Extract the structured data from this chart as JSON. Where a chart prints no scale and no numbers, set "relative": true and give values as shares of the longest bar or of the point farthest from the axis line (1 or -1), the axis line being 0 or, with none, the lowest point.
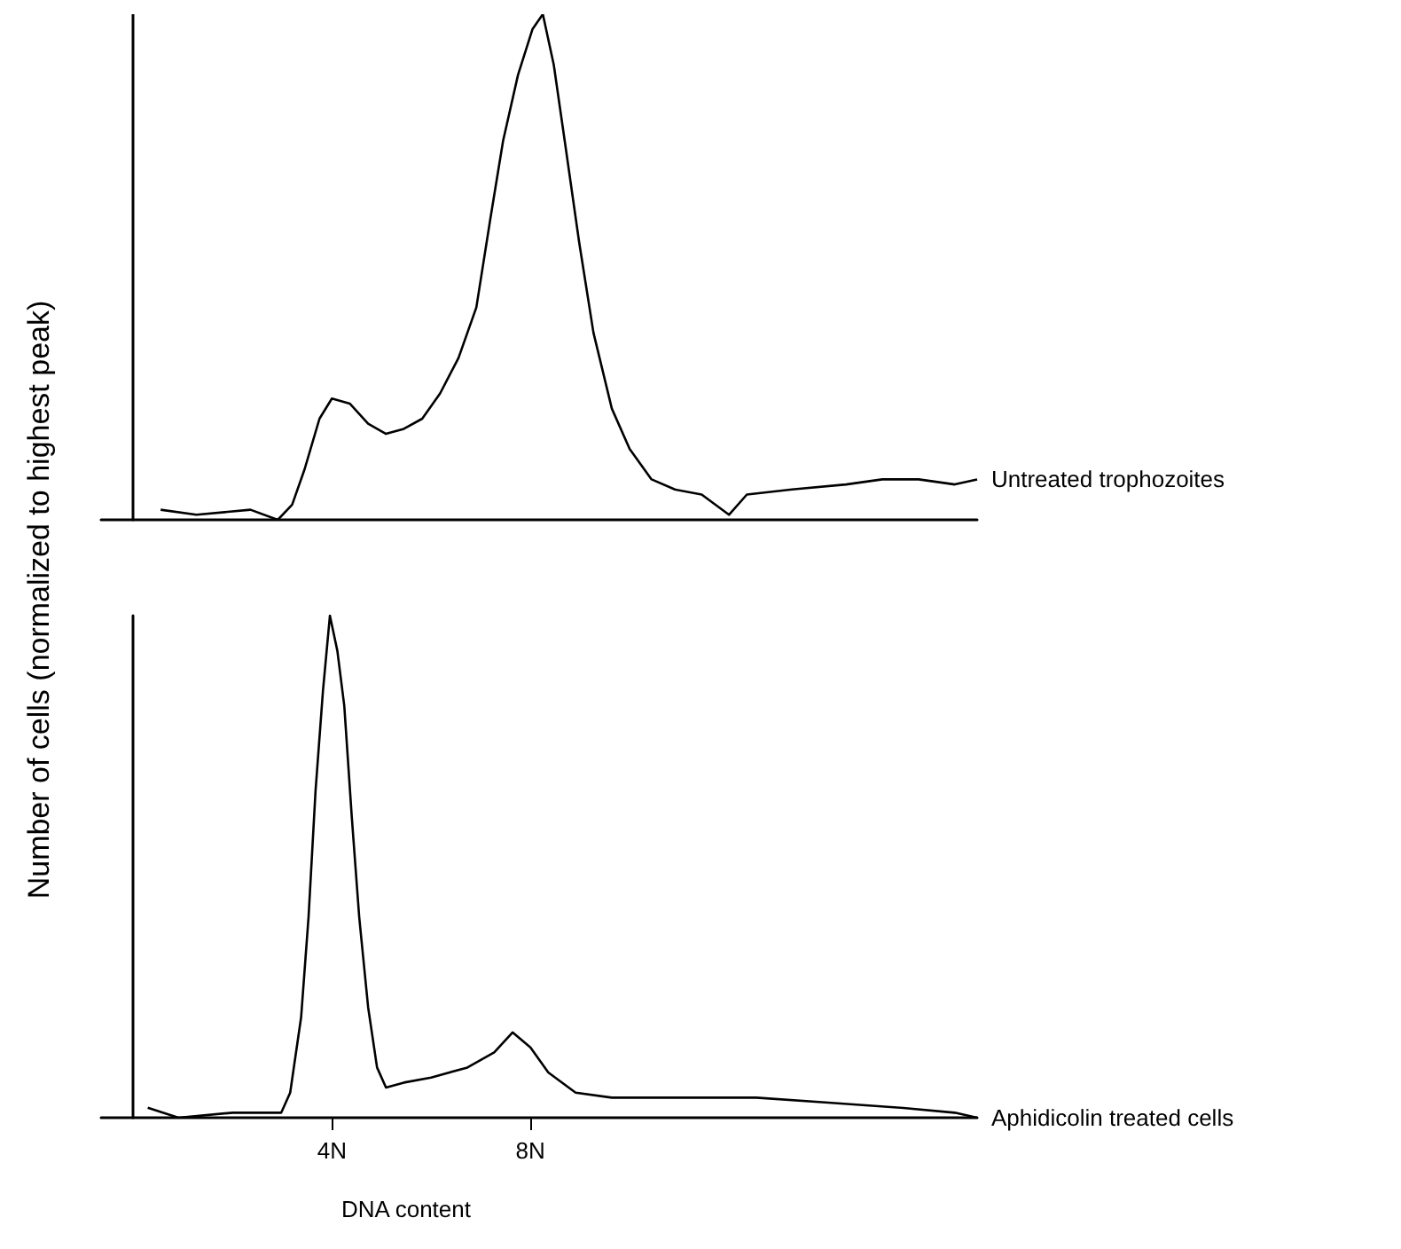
{
  "chart_data": [
    {
      "type": "line",
      "ylabel": "Number of cells (normalized to highest peak)",
      "relative": true,
      "xlim": [
        -0.65,
        17
      ],
      "tick_labels": false,
      "marker": "none",
      "grid": false,
      "legend": false,
      "series": [
        {
          "name": "Untreated trophozoites",
          "color": "#000000",
          "x": [
            0.55,
            1.27,
            2.36,
            2.91,
            3.2,
            3.45,
            3.75,
            4,
            4.36,
            4.73,
            5.09,
            5.45,
            5.82,
            6.18,
            6.55,
            6.91,
            7.2,
            7.45,
            7.75,
            8.04,
            8.25,
            8.47,
            8.69,
            8.98,
            9.27,
            9.64,
            10,
            10.44,
            10.91,
            11.45,
            12,
            12.36,
            13.27,
            14.36,
            15.09,
            15.82,
            16.55,
            17
          ],
          "values": [
            0.02,
            0.01,
            0.02,
            0,
            0.03,
            0.1,
            0.2,
            0.24,
            0.23,
            0.19,
            0.17,
            0.18,
            0.2,
            0.25,
            0.32,
            0.42,
            0.6,
            0.75,
            0.88,
            0.97,
            1,
            0.9,
            0.75,
            0.55,
            0.37,
            0.22,
            0.14,
            0.08,
            0.06,
            0.05,
            0.01,
            0.05,
            0.06,
            0.07,
            0.08,
            0.08,
            0.07,
            0.08
          ]
        }
      ]
    },
    {
      "type": "line",
      "xlabel": "DNA content",
      "relative": true,
      "xlim": [
        -0.65,
        17
      ],
      "xticks": [
        {
          "value": 4,
          "label": "4N"
        },
        {
          "value": 8,
          "label": "8N"
        }
      ],
      "tick_labels": "x",
      "marker": "none",
      "grid": false,
      "legend": false,
      "series": [
        {
          "name": "Aphidicolin treated cells",
          "color": "#000000",
          "x": [
            0.29,
            0.91,
            2,
            2.98,
            3.16,
            3.38,
            3.53,
            3.67,
            3.82,
            3.96,
            4.11,
            4.25,
            4.4,
            4.55,
            4.73,
            4.91,
            5.09,
            5.45,
            6,
            6.73,
            7.27,
            7.64,
            8,
            8.36,
            8.91,
            9.64,
            11.09,
            12.55,
            14,
            15.45,
            16.55,
            17
          ],
          "values": [
            0.02,
            0,
            0.01,
            0.01,
            0.05,
            0.2,
            0.4,
            0.65,
            0.85,
            1,
            0.93,
            0.82,
            0.6,
            0.4,
            0.22,
            0.1,
            0.06,
            0.07,
            0.08,
            0.1,
            0.13,
            0.17,
            0.14,
            0.09,
            0.05,
            0.04,
            0.04,
            0.04,
            0.03,
            0.02,
            0.01,
            0
          ]
        }
      ]
    }
  ]
}
